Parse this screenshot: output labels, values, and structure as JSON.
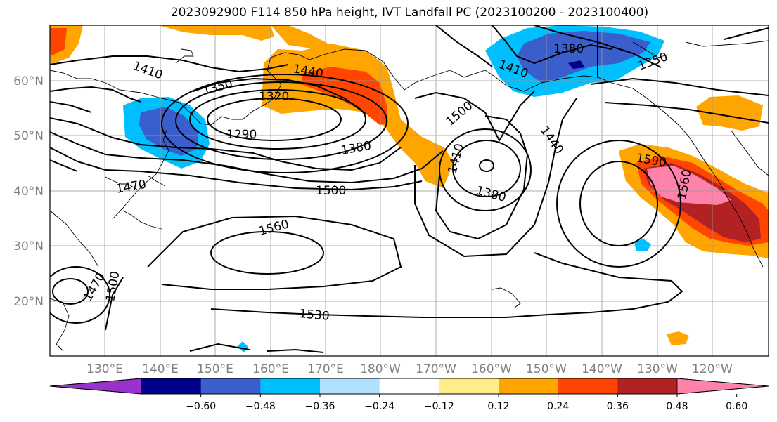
{
  "title": "2023092900 F114 850 hPa height, IVT Landfall PC (2023100200 - 2023100400)",
  "lat_labels": [
    "60°N",
    "50°N",
    "40°N",
    "30°N",
    "20°N"
  ],
  "lon_labels": [
    "130°E",
    "140°E",
    "150°E",
    "160°E",
    "170°E",
    "180°W",
    "170°W",
    "160°W",
    "150°W",
    "140°W",
    "130°W",
    "120°W"
  ],
  "contour_labels": [
    "1410",
    "1440",
    "1350",
    "1320",
    "1290",
    "1380",
    "1500",
    "1410",
    "1380",
    "1440",
    "1380",
    "1410",
    "1350",
    "1590",
    "1560",
    "1470",
    "1500",
    "1560",
    "1470",
    "1500",
    "1530"
  ],
  "colorbar": {
    "colors": [
      "#9932cc",
      "#00008b",
      "#3a5fcd",
      "#00bfff",
      "#b0e2ff",
      "#ffffff",
      "#ffec8b",
      "#ffa500",
      "#ff4500",
      "#b22222",
      "#ff82ab"
    ],
    "ticks": [
      "−0.60",
      "−0.48",
      "−0.36",
      "−0.24",
      "−0.12",
      "0.12",
      "0.24",
      "0.36",
      "0.48",
      "0.60"
    ]
  }
}
